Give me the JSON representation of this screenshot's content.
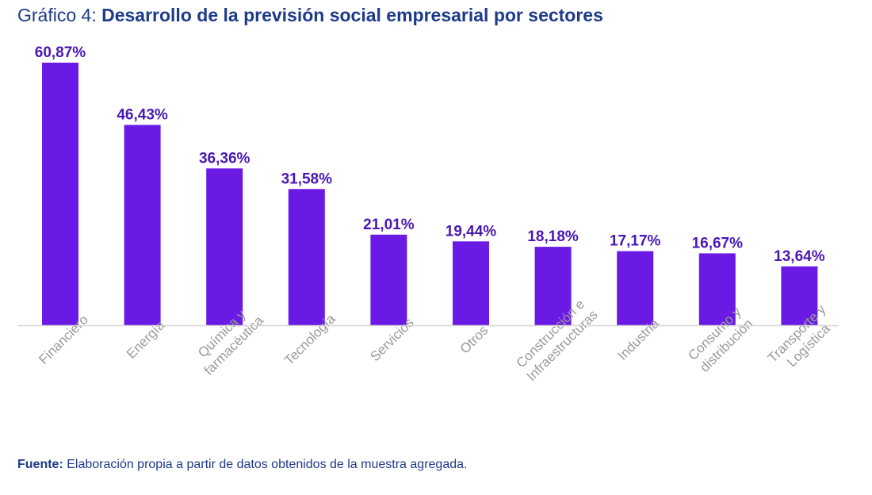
{
  "title": {
    "prefix": "Gráfico 4:",
    "main": "Desarrollo de la previsión social empresarial por sectores"
  },
  "source": {
    "label": "Fuente:",
    "text": "Elaboración propia a partir de datos obtenidos de la muestra agregada."
  },
  "colors": {
    "bar": "#6a1ae4",
    "value_label": "#4a17b4",
    "title": "#1e3a8a",
    "axis_label": "#9a9a9a",
    "baseline": "#d6d6d6"
  },
  "chart_data": {
    "type": "bar",
    "title": "Desarrollo de la previsión social empresarial por sectores",
    "xlabel": "",
    "ylabel": "",
    "ylim": [
      0,
      60.87
    ],
    "grid": false,
    "categories": [
      [
        "Financiero"
      ],
      [
        "Energía"
      ],
      [
        "Química y",
        "farmacéutica"
      ],
      [
        "Tecnología"
      ],
      [
        "Servicios"
      ],
      [
        "Otros"
      ],
      [
        "Construcción e",
        "Infraestructuras"
      ],
      [
        "Industria"
      ],
      [
        "Consumo y",
        "distribución"
      ],
      [
        "Transporte y",
        "Logística"
      ]
    ],
    "values": [
      60.87,
      46.43,
      36.36,
      31.58,
      21.01,
      19.44,
      18.18,
      17.17,
      16.67,
      13.64
    ],
    "value_labels": [
      "60,87%",
      "46,43%",
      "36,36%",
      "31,58%",
      "21,01%",
      "19,44%",
      "18,18%",
      "17,17%",
      "16,67%",
      "13,64%"
    ]
  }
}
